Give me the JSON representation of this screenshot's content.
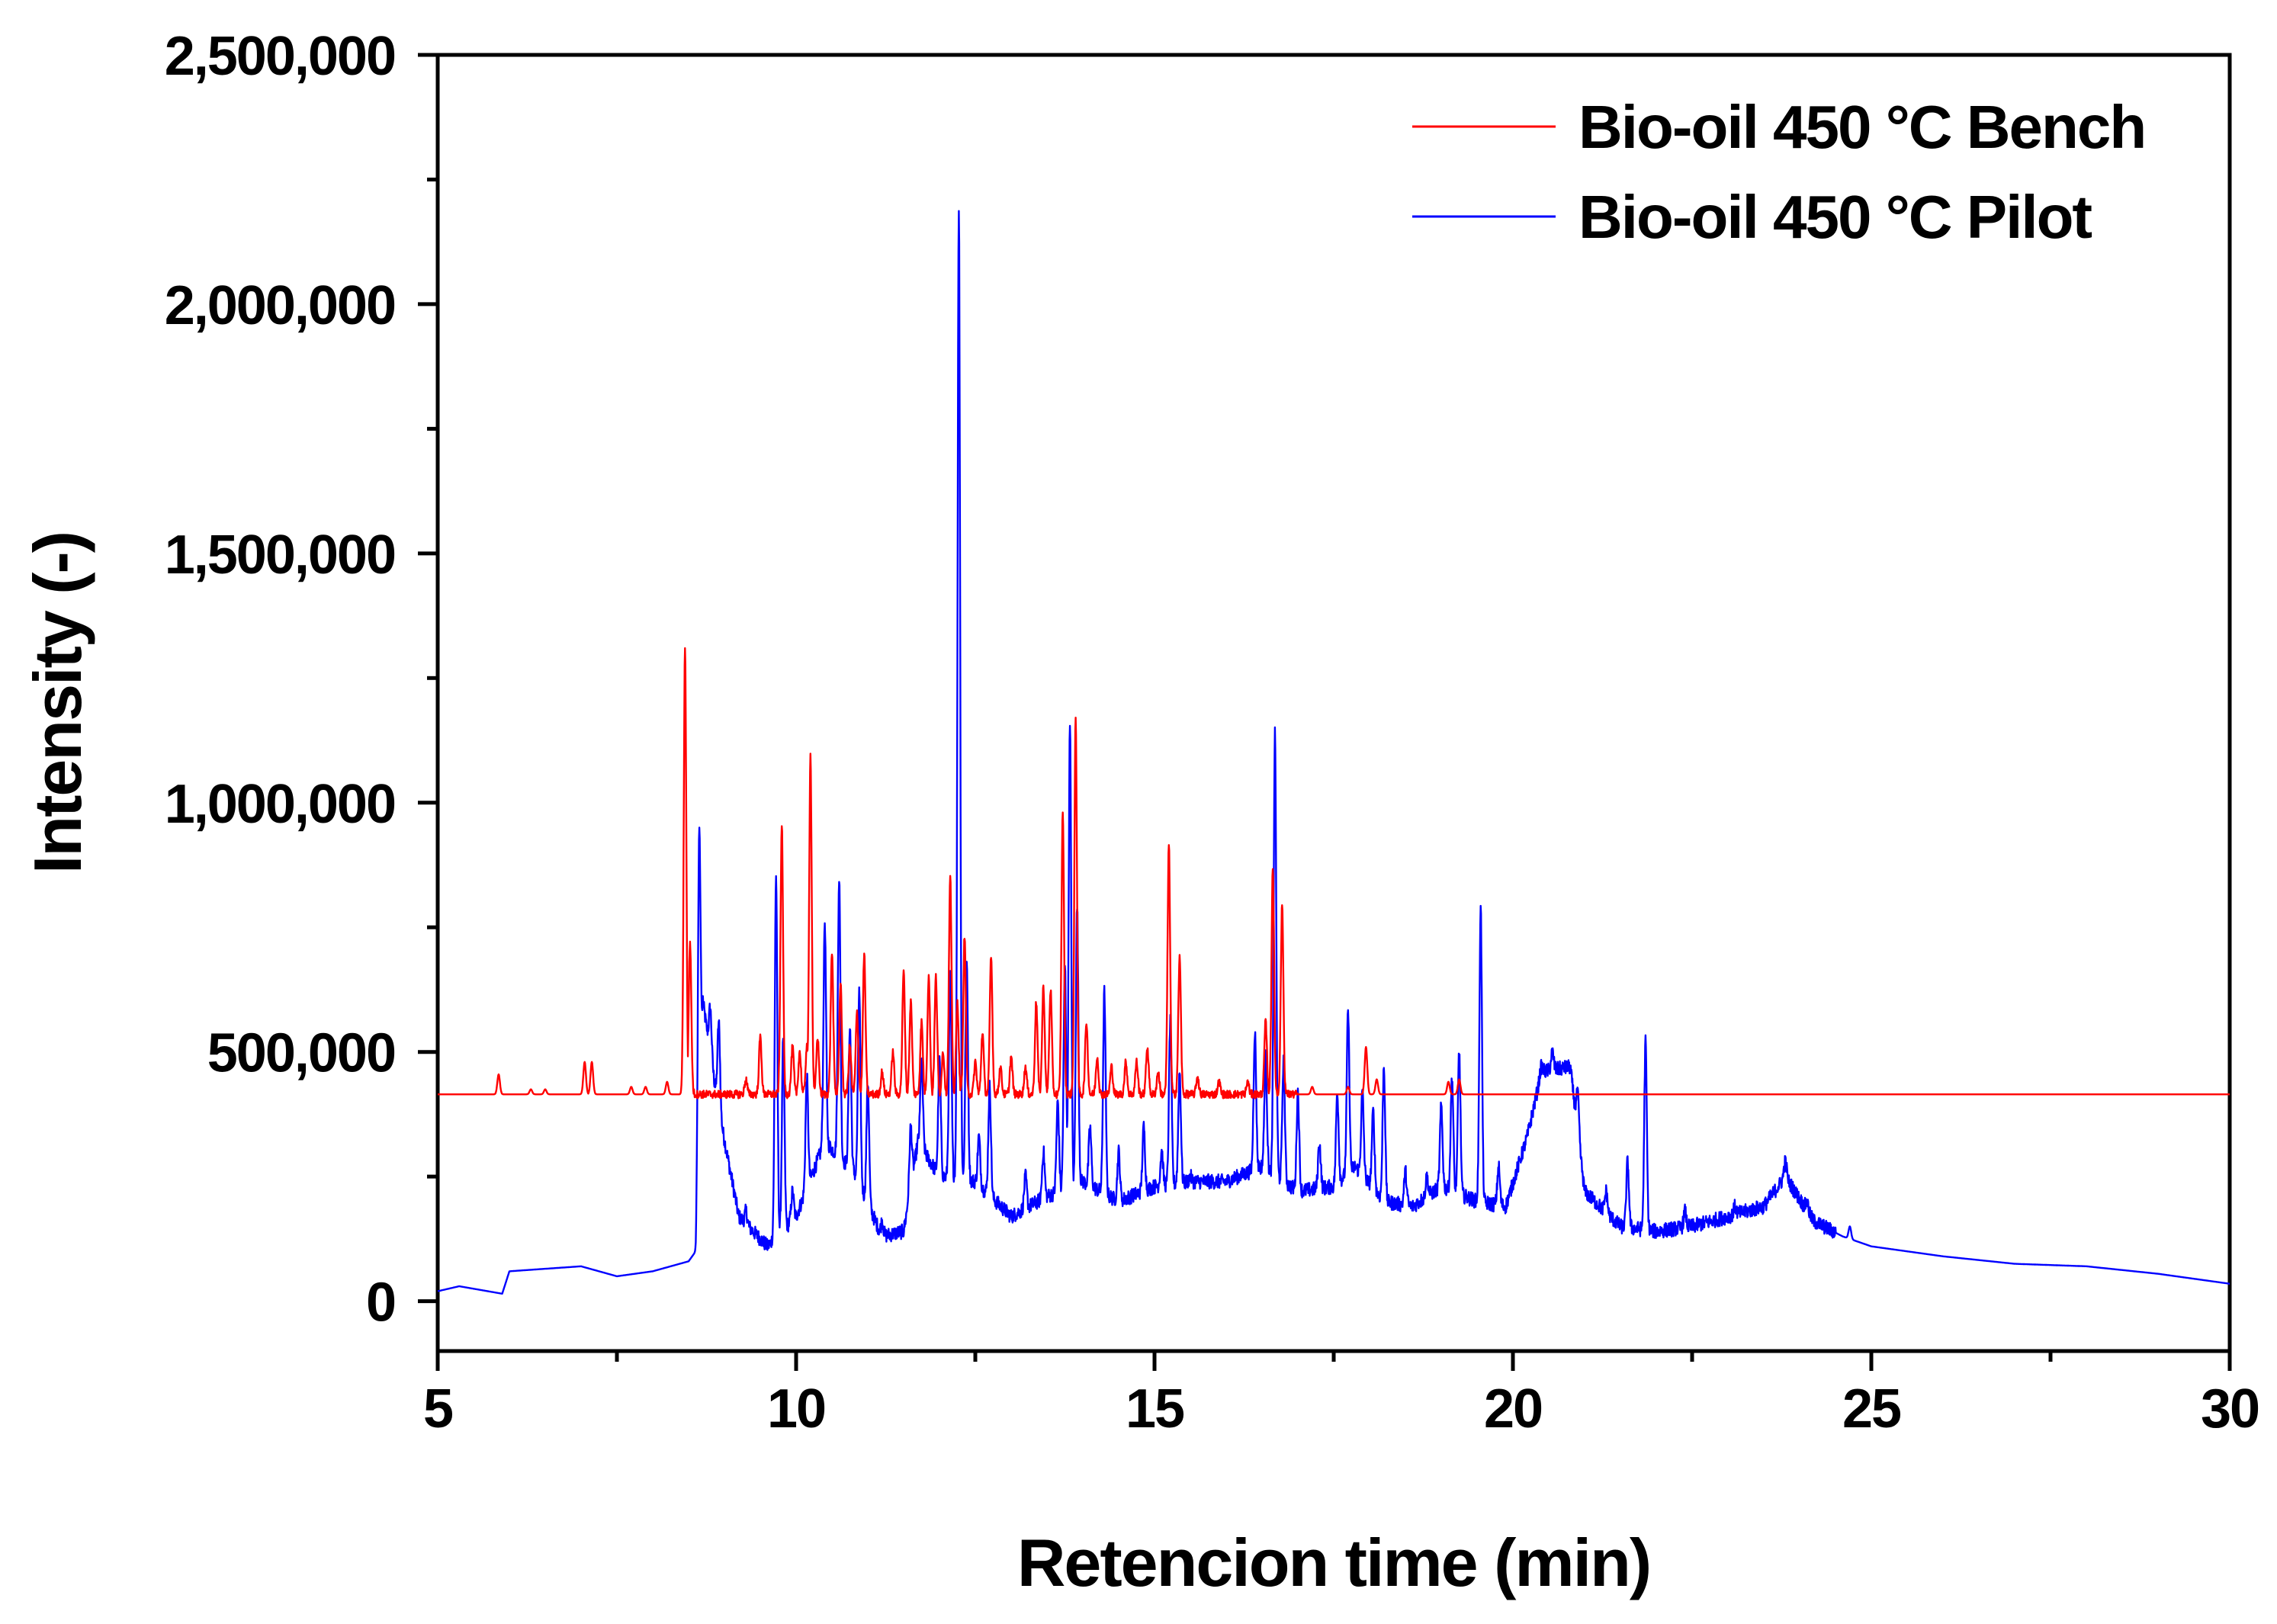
{
  "chart_data": {
    "type": "line",
    "title": "",
    "xlabel": "Retencion time (min)",
    "ylabel": "Intensity (-)",
    "xlim": [
      5,
      30
    ],
    "ylim": [
      -100000,
      2500000
    ],
    "x_ticks": [
      5,
      10,
      15,
      20,
      25,
      30
    ],
    "x_tick_labels": [
      "5",
      "10",
      "15",
      "20",
      "25",
      "30"
    ],
    "y_ticks": [
      0,
      500000,
      1000000,
      1500000,
      2000000,
      2500000
    ],
    "y_tick_labels": [
      "0",
      "500,000",
      "1,000,000",
      "1,500,000",
      "2,000,000",
      "2,500,000"
    ],
    "grid": false,
    "legend_position": "top-right",
    "series": [
      {
        "name": "Bio-oil 450 °C Bench",
        "color": "#ff0000",
        "baseline": 415000,
        "peaks": [
          [
            5.85,
            455000
          ],
          [
            6.3,
            425000
          ],
          [
            6.5,
            425000
          ],
          [
            7.05,
            480000
          ],
          [
            7.15,
            480000
          ],
          [
            7.7,
            430000
          ],
          [
            7.9,
            430000
          ],
          [
            8.2,
            440000
          ],
          [
            8.45,
            1310000
          ],
          [
            8.52,
            720000
          ],
          [
            9.3,
            445000
          ],
          [
            9.5,
            530000
          ],
          [
            9.8,
            955000
          ],
          [
            9.95,
            510000
          ],
          [
            10.05,
            500000
          ],
          [
            10.15,
            510000
          ],
          [
            10.2,
            1095000
          ],
          [
            10.3,
            530000
          ],
          [
            10.5,
            700000
          ],
          [
            10.62,
            640000
          ],
          [
            10.75,
            510000
          ],
          [
            10.85,
            580000
          ],
          [
            10.95,
            695000
          ],
          [
            11.2,
            460000
          ],
          [
            11.35,
            500000
          ],
          [
            11.5,
            660000
          ],
          [
            11.6,
            600000
          ],
          [
            11.75,
            560000
          ],
          [
            11.85,
            650000
          ],
          [
            11.95,
            650000
          ],
          [
            12.05,
            500000
          ],
          [
            12.15,
            850000
          ],
          [
            12.25,
            600000
          ],
          [
            12.35,
            730000
          ],
          [
            12.5,
            480000
          ],
          [
            12.6,
            540000
          ],
          [
            12.72,
            690000
          ],
          [
            12.85,
            470000
          ],
          [
            13.0,
            490000
          ],
          [
            13.2,
            470000
          ],
          [
            13.35,
            600000
          ],
          [
            13.45,
            630000
          ],
          [
            13.55,
            625000
          ],
          [
            13.72,
            980000
          ],
          [
            13.9,
            1170000
          ],
          [
            14.05,
            560000
          ],
          [
            14.2,
            490000
          ],
          [
            14.4,
            470000
          ],
          [
            14.6,
            480000
          ],
          [
            14.75,
            480000
          ],
          [
            14.9,
            510000
          ],
          [
            15.05,
            460000
          ],
          [
            15.2,
            915000
          ],
          [
            15.35,
            690000
          ],
          [
            15.6,
            450000
          ],
          [
            15.9,
            440000
          ],
          [
            16.3,
            440000
          ],
          [
            16.55,
            560000
          ],
          [
            16.65,
            870000
          ],
          [
            16.78,
            795000
          ],
          [
            17.2,
            430000
          ],
          [
            17.7,
            430000
          ],
          [
            17.95,
            510000
          ],
          [
            18.1,
            445000
          ],
          [
            19.1,
            440000
          ],
          [
            19.25,
            445000
          ]
        ]
      },
      {
        "name": "Bio-oil 450 °C Pilot",
        "color": "#0000ff",
        "peaks": [
          [
            8.65,
            950000
          ],
          [
            8.8,
            590000
          ],
          [
            8.92,
            560000
          ],
          [
            9.3,
            180000
          ],
          [
            9.72,
            850000
          ],
          [
            9.82,
            520000
          ],
          [
            9.95,
            220000
          ],
          [
            10.15,
            450000
          ],
          [
            10.4,
            760000
          ],
          [
            10.6,
            850000
          ],
          [
            10.75,
            550000
          ],
          [
            10.88,
            620000
          ],
          [
            11.0,
            440000
          ],
          [
            11.2,
            160000
          ],
          [
            11.6,
            350000
          ],
          [
            11.75,
            480000
          ],
          [
            12.0,
            480000
          ],
          [
            12.15,
            650000
          ],
          [
            12.27,
            2190000
          ],
          [
            12.38,
            680000
          ],
          [
            12.55,
            330000
          ],
          [
            12.7,
            430000
          ],
          [
            13.2,
            250000
          ],
          [
            13.45,
            300000
          ],
          [
            13.65,
            400000
          ],
          [
            13.75,
            670000
          ],
          [
            13.82,
            1150000
          ],
          [
            13.92,
            790000
          ],
          [
            14.1,
            350000
          ],
          [
            14.3,
            620000
          ],
          [
            14.5,
            300000
          ],
          [
            14.85,
            350000
          ],
          [
            15.1,
            300000
          ],
          [
            15.22,
            560000
          ],
          [
            15.35,
            460000
          ],
          [
            15.5,
            250000
          ],
          [
            16.4,
            540000
          ],
          [
            16.55,
            490000
          ],
          [
            16.68,
            1140000
          ],
          [
            16.8,
            480000
          ],
          [
            17.0,
            420000
          ],
          [
            17.3,
            320000
          ],
          [
            17.55,
            420000
          ],
          [
            17.7,
            580000
          ],
          [
            17.9,
            420000
          ],
          [
            18.05,
            380000
          ],
          [
            18.2,
            470000
          ],
          [
            18.5,
            260000
          ],
          [
            18.8,
            250000
          ],
          [
            19.0,
            390000
          ],
          [
            19.15,
            450000
          ],
          [
            19.25,
            500000
          ],
          [
            19.55,
            790000
          ],
          [
            19.8,
            270000
          ],
          [
            20.4,
            470000
          ],
          [
            20.55,
            500000
          ],
          [
            20.75,
            440000
          ],
          [
            20.9,
            420000
          ],
          [
            21.3,
            220000
          ],
          [
            21.6,
            280000
          ],
          [
            21.85,
            520000
          ],
          [
            22.4,
            180000
          ],
          [
            23.1,
            190000
          ],
          [
            23.8,
            280000
          ],
          [
            24.1,
            200000
          ],
          [
            24.7,
            150000
          ]
        ]
      }
    ]
  }
}
